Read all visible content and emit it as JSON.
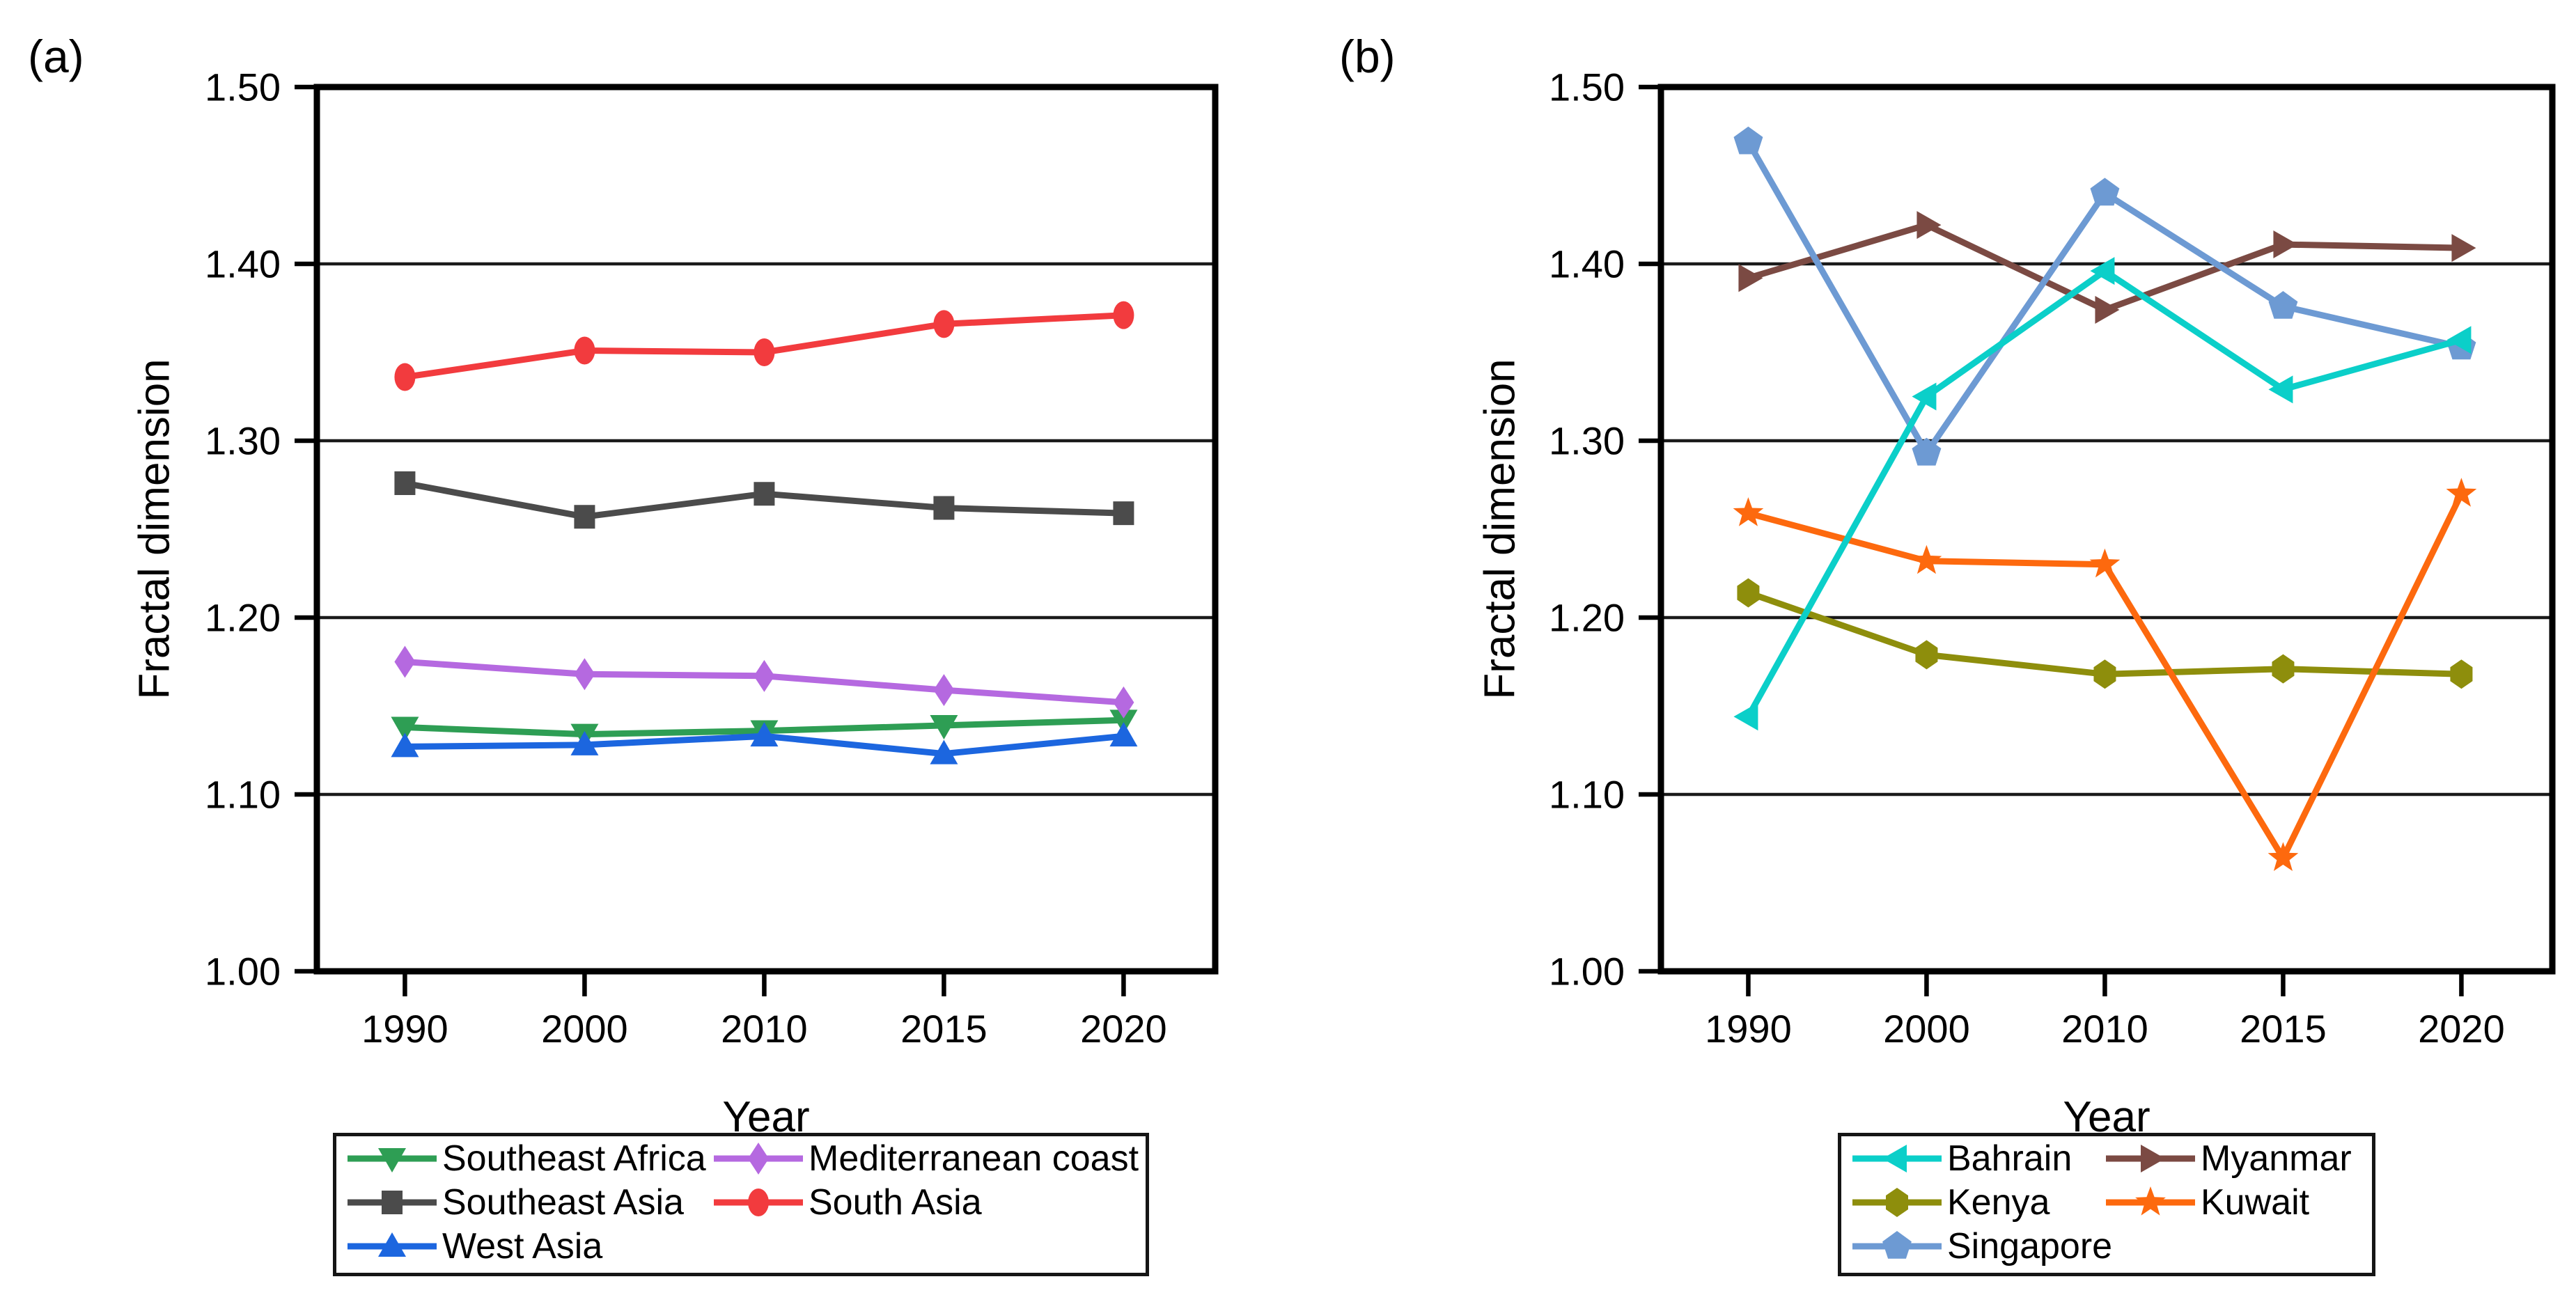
{
  "figure": {
    "background": "#ffffff",
    "frame_color": "#000000",
    "gridline_color": "#1a1a1a"
  },
  "chart_data": [
    {
      "type": "line",
      "panel_label": "(a)",
      "xlabel": "Year",
      "ylabel": "Fractal dimension",
      "categories": [
        "1990",
        "2000",
        "2010",
        "2015",
        "2020"
      ],
      "ylim": [
        1.0,
        1.5
      ],
      "yticks": [
        "1.00",
        "1.10",
        "1.20",
        "1.30",
        "1.40",
        "1.50"
      ],
      "grid": "horizontal",
      "legend_position": "below",
      "series": [
        {
          "name": "Southeast Africa",
          "color": "#2e9e54",
          "marker": "triangle-down",
          "values": [
            1.138,
            1.134,
            1.136,
            1.139,
            1.142
          ]
        },
        {
          "name": "West Asia",
          "color": "#1c66df",
          "marker": "triangle-up",
          "values": [
            1.127,
            1.128,
            1.133,
            1.123,
            1.133
          ]
        },
        {
          "name": "Mediterranean coast",
          "color": "#b569e0",
          "marker": "diamond",
          "values": [
            1.175,
            1.168,
            1.167,
            1.159,
            1.152
          ]
        },
        {
          "name": "Southeast Asia",
          "color": "#4b4b4b",
          "marker": "square",
          "values": [
            1.276,
            1.257,
            1.27,
            1.262,
            1.259
          ]
        },
        {
          "name": "South Asia",
          "color": "#f23b3e",
          "marker": "circle",
          "values": [
            1.336,
            1.351,
            1.35,
            1.366,
            1.371
          ]
        }
      ],
      "legend_rows": [
        [
          "Southeast Africa",
          "Mediterranean coast"
        ],
        [
          "Southeast Asia",
          "South Asia"
        ],
        [
          "West Asia"
        ]
      ]
    },
    {
      "type": "line",
      "panel_label": "(b)",
      "xlabel": "Year",
      "ylabel": "Fractal dimension",
      "categories": [
        "1990",
        "2000",
        "2010",
        "2015",
        "2020"
      ],
      "ylim": [
        1.0,
        1.5
      ],
      "yticks": [
        "1.00",
        "1.10",
        "1.20",
        "1.30",
        "1.40",
        "1.50"
      ],
      "grid": "horizontal",
      "legend_position": "below",
      "series": [
        {
          "name": "Myanmar",
          "color": "#7b4a43",
          "marker": "triangle-right",
          "values": [
            1.392,
            1.422,
            1.374,
            1.411,
            1.409
          ]
        },
        {
          "name": "Kenya",
          "color": "#8e8e0c",
          "marker": "hexagon",
          "values": [
            1.214,
            1.179,
            1.168,
            1.171,
            1.168
          ]
        },
        {
          "name": "Kuwait",
          "color": "#fd690e",
          "marker": "star",
          "values": [
            1.259,
            1.232,
            1.23,
            1.064,
            1.27
          ]
        },
        {
          "name": "Singapore",
          "color": "#6d9ad3",
          "marker": "pentagon",
          "values": [
            1.469,
            1.293,
            1.44,
            1.376,
            1.353
          ]
        },
        {
          "name": "Bahrain",
          "color": "#0bcfc9",
          "marker": "triangle-left",
          "values": [
            1.144,
            1.325,
            1.396,
            1.329,
            1.357
          ]
        }
      ],
      "legend_rows": [
        [
          "Bahrain",
          "Myanmar"
        ],
        [
          "Kenya",
          "Kuwait"
        ],
        [
          "Singapore"
        ]
      ]
    }
  ]
}
